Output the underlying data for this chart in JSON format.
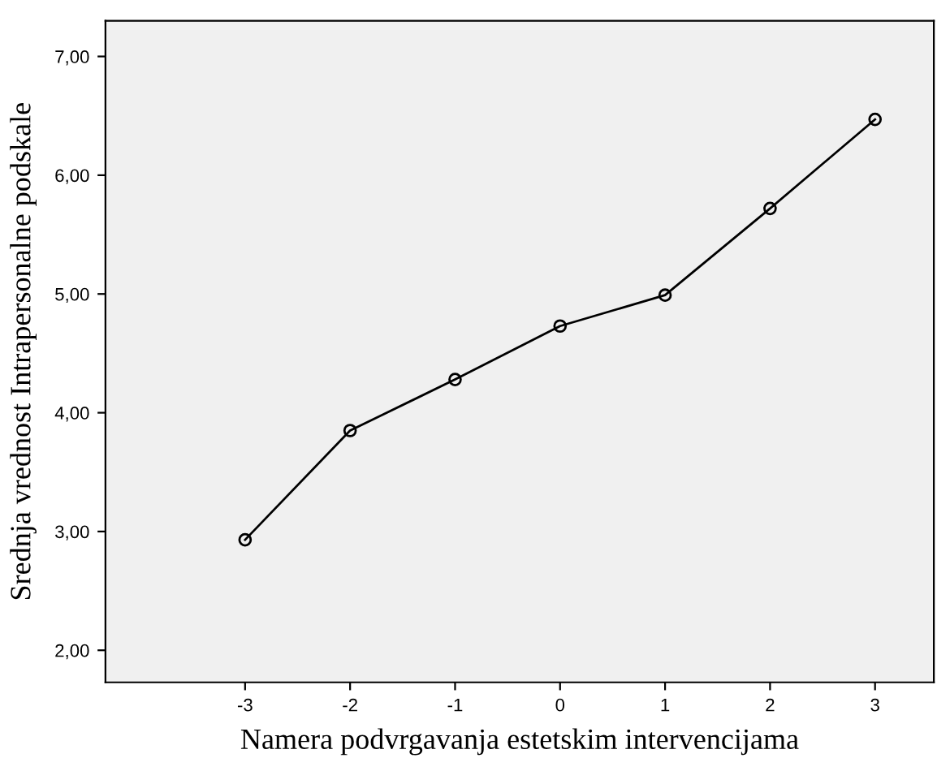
{
  "chart_data": {
    "type": "line",
    "xlabel": "Namera podvrgavanja estetskim intervencijama",
    "ylabel": "Srednja vrednost Intrapersonalne podskale",
    "x": [
      -3,
      -2,
      -1,
      0,
      1,
      2,
      3
    ],
    "series": [
      {
        "color": "#000000",
        "values": [
          2.93,
          3.85,
          4.28,
          4.73,
          4.99,
          5.72,
          6.47
        ]
      }
    ],
    "xlim": [
      -4.33,
      3.56
    ],
    "ylim": [
      1.73,
      7.3
    ],
    "xticks": [
      -3,
      -2,
      -1,
      0,
      1,
      2,
      3
    ],
    "yticks": [
      {
        "value": 2,
        "label": "2,00"
      },
      {
        "value": 3,
        "label": "3,00"
      },
      {
        "value": 4,
        "label": "4,00"
      },
      {
        "value": 5,
        "label": "5,00"
      },
      {
        "value": 6,
        "label": "6,00"
      },
      {
        "value": 7,
        "label": "7,00"
      }
    ],
    "marker": "circle",
    "line_style": "solid",
    "grid": false,
    "legend": false
  }
}
